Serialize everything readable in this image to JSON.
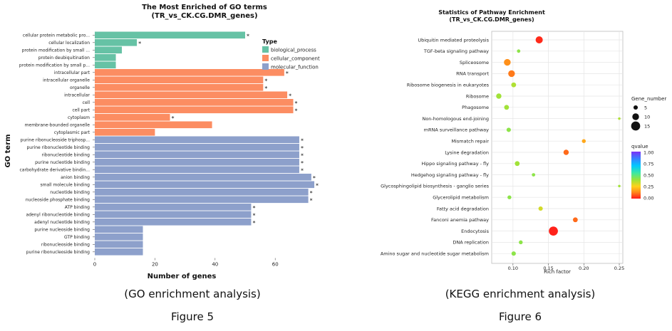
{
  "colors": {
    "biological_process": "#66c2a5",
    "cellular_component": "#fc8d62",
    "molecular_function": "#8da0cb",
    "panel_bg": "#ffffff",
    "kegg_grid": "#e5e5e5",
    "qvalue_gradient": [
      "#7b2ff7",
      "#3a7bff",
      "#00c8ff",
      "#3ee8a0",
      "#9be33a",
      "#ffd21a",
      "#ff8c1a",
      "#ff1a1a"
    ]
  },
  "figures": {
    "go": {
      "caption": "(GO enrichment analysis)",
      "label": "Figure 5"
    },
    "kegg": {
      "caption": "(KEGG enrichment analysis)",
      "label": "Figure 6"
    }
  },
  "chart_data": [
    {
      "type": "bar",
      "orientation": "horizontal",
      "title": "The Most Enriched of GO terms",
      "subtitle": "(TR_vs_CK.CG.DMR_genes)",
      "xlabel": "Number of genes",
      "ylabel": "GO term",
      "xlim": [
        0,
        80
      ],
      "xticks": [
        "0",
        "20",
        "40",
        "60"
      ],
      "legend": {
        "title": "Type",
        "position": "top-right",
        "entries": [
          "biological_process",
          "cellular_component",
          "molecular_function"
        ]
      },
      "categories": [
        "cellular protein metabolic pro...",
        "cellular localization",
        "protein modification by small ...",
        "protein deubiquitination",
        "protein modification by small p...",
        "intracellular part",
        "intracellular organelle",
        "organelle",
        "intracellular",
        "cell",
        "cell part",
        "cytoplasm",
        "membrane-bounded organelle",
        "cytoplasmic part",
        "purine ribonucleoside triphosp...",
        "purine ribonucleotide binding",
        "ribonucleotide binding",
        "purine nucleotide binding",
        "carbohydrate derivative bindin...",
        "anion binding",
        "small molecule binding",
        "nucleotide binding",
        "nucleoside phosphate binding",
        "ATP binding",
        "adenyl ribonucleotide binding",
        "adenyl nucleotide binding",
        "purine nucleoside binding",
        "GTP binding",
        "ribonucleoside binding",
        "purine ribonucleoside binding"
      ],
      "values": [
        50,
        14,
        9,
        7,
        7,
        63,
        56,
        56,
        64,
        66,
        66,
        25,
        39,
        20,
        68,
        68,
        68,
        68,
        68,
        72,
        73,
        71,
        71,
        52,
        52,
        52,
        16,
        16,
        16,
        16
      ],
      "types": [
        "biological_process",
        "biological_process",
        "biological_process",
        "biological_process",
        "biological_process",
        "cellular_component",
        "cellular_component",
        "cellular_component",
        "cellular_component",
        "cellular_component",
        "cellular_component",
        "cellular_component",
        "cellular_component",
        "cellular_component",
        "molecular_function",
        "molecular_function",
        "molecular_function",
        "molecular_function",
        "molecular_function",
        "molecular_function",
        "molecular_function",
        "molecular_function",
        "molecular_function",
        "molecular_function",
        "molecular_function",
        "molecular_function",
        "molecular_function",
        "molecular_function",
        "molecular_function",
        "molecular_function"
      ],
      "significant": [
        true,
        true,
        false,
        false,
        false,
        true,
        true,
        true,
        true,
        true,
        true,
        true,
        false,
        false,
        true,
        true,
        true,
        true,
        true,
        true,
        true,
        true,
        true,
        true,
        true,
        true,
        false,
        false,
        false,
        false
      ],
      "annotation_mark": "*"
    },
    {
      "type": "scatter",
      "title": "Statistics of Pathway Enrichment",
      "subtitle": "(TR_vs_CK.CG.DMR_genes)",
      "xlabel": "Rich factor",
      "ylabel": "",
      "xlim": [
        0.07,
        0.255
      ],
      "xticks": [
        "0.10",
        "0.15",
        "0.20",
        "0.25"
      ],
      "grid": true,
      "size_legend": {
        "title": "Gene_number",
        "entries": [
          "5",
          "10",
          "15"
        ]
      },
      "color_legend": {
        "title": "qvalue",
        "ticks": [
          "1.00",
          "0.75",
          "0.50",
          "0.25",
          "0.00"
        ]
      },
      "categories": [
        "Ubiquitin mediated proteolysis",
        "TGF-beta signaling pathway",
        "Spliceosome",
        "RNA transport",
        "Ribosome biogenesis in eukaryotes",
        "Ribosome",
        "Phagosome",
        "Non-homologous end-joining",
        "mRNA surveillance pathway",
        "Mismatch repair",
        "Lysine degradation",
        "Hippo signaling pathway - fly",
        "Hedgehog signaling pathway - fly",
        "Glycosphingolipid biosynthesis - ganglio series",
        "Glycerolipid metabolism",
        "Fatty acid degradation",
        "Fanconi anemia pathway",
        "Endocytosis",
        "DNA replication",
        "Amino sugar and nucleotide sugar metabolism"
      ],
      "points": [
        {
          "x": 0.137,
          "gene_number": 11,
          "qvalue": 0.02
        },
        {
          "x": 0.108,
          "gene_number": 3,
          "qvalue": 0.45
        },
        {
          "x": 0.092,
          "gene_number": 10,
          "qvalue": 0.15
        },
        {
          "x": 0.098,
          "gene_number": 10,
          "qvalue": 0.12
        },
        {
          "x": 0.101,
          "gene_number": 6,
          "qvalue": 0.4
        },
        {
          "x": 0.08,
          "gene_number": 7,
          "qvalue": 0.42
        },
        {
          "x": 0.091,
          "gene_number": 6,
          "qvalue": 0.42
        },
        {
          "x": 0.25,
          "gene_number": 1,
          "qvalue": 0.4
        },
        {
          "x": 0.094,
          "gene_number": 5,
          "qvalue": 0.45
        },
        {
          "x": 0.2,
          "gene_number": 4,
          "qvalue": 0.2
        },
        {
          "x": 0.175,
          "gene_number": 7,
          "qvalue": 0.1
        },
        {
          "x": 0.106,
          "gene_number": 6,
          "qvalue": 0.42
        },
        {
          "x": 0.129,
          "gene_number": 3,
          "qvalue": 0.45
        },
        {
          "x": 0.25,
          "gene_number": 1,
          "qvalue": 0.42
        },
        {
          "x": 0.095,
          "gene_number": 4,
          "qvalue": 0.45
        },
        {
          "x": 0.139,
          "gene_number": 5,
          "qvalue": 0.35
        },
        {
          "x": 0.188,
          "gene_number": 6,
          "qvalue": 0.1
        },
        {
          "x": 0.157,
          "gene_number": 15,
          "qvalue": 0.01
        },
        {
          "x": 0.111,
          "gene_number": 4,
          "qvalue": 0.45
        },
        {
          "x": 0.101,
          "gene_number": 5,
          "qvalue": 0.45
        }
      ]
    }
  ]
}
